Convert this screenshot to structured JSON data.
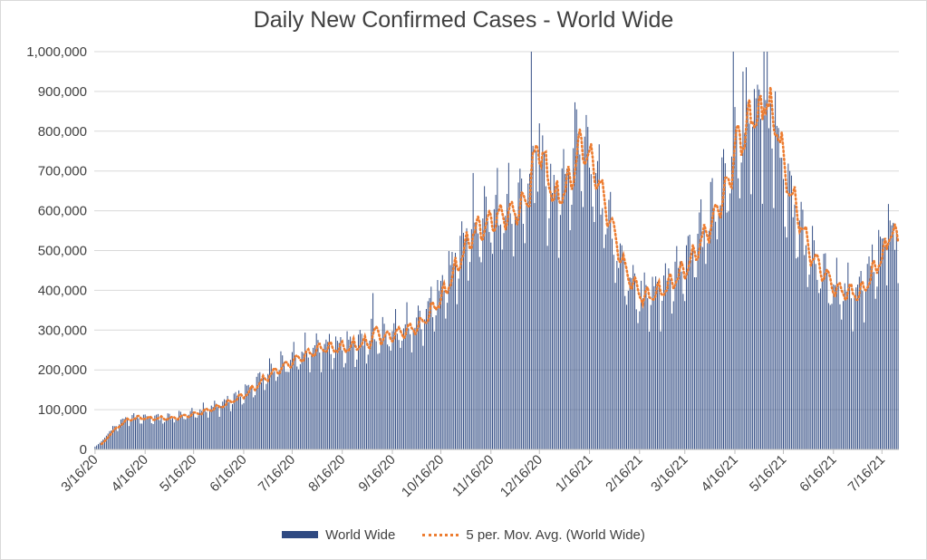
{
  "chart_data": {
    "type": "bar",
    "title": "Daily New Confirmed Cases - World Wide",
    "xlabel": "",
    "ylabel": "",
    "ylim": [
      0,
      1000000
    ],
    "yticks": [
      0,
      100000,
      200000,
      300000,
      400000,
      500000,
      600000,
      700000,
      800000,
      900000,
      1000000
    ],
    "ytick_labels": [
      "0",
      "100,000",
      "200,000",
      "300,000",
      "400,000",
      "500,000",
      "600,000",
      "700,000",
      "800,000",
      "900,000",
      "1,000,000"
    ],
    "grid": true,
    "legend_position": "bottom",
    "x_start_date": "2020-03-16",
    "x_tick_labels": [
      "3/16/20",
      "4/16/20",
      "5/16/20",
      "6/16/20",
      "7/16/20",
      "8/16/20",
      "9/16/20",
      "10/16/20",
      "11/16/20",
      "12/16/20",
      "1/16/21",
      "2/16/21",
      "3/16/21",
      "4/16/21",
      "5/16/21",
      "6/16/21",
      "7/16/21"
    ],
    "x_tick_dates": [
      "2020-03-16",
      "2020-04-16",
      "2020-05-16",
      "2020-06-16",
      "2020-07-16",
      "2020-08-16",
      "2020-09-16",
      "2020-10-16",
      "2020-11-16",
      "2020-12-16",
      "2021-01-16",
      "2021-02-16",
      "2021-03-16",
      "2021-04-16",
      "2021-05-16",
      "2021-06-16",
      "2021-07-16"
    ],
    "bar_color": "#2f4a82",
    "trend_color": "#ed7d31",
    "series": [
      {
        "name": "World Wide",
        "anchors": [
          [
            "2020-03-16",
            12000
          ],
          [
            "2020-03-24",
            40000
          ],
          [
            "2020-04-01",
            70000
          ],
          [
            "2020-04-08",
            80000
          ],
          [
            "2020-04-16",
            78000
          ],
          [
            "2020-05-01",
            78000
          ],
          [
            "2020-05-16",
            90000
          ],
          [
            "2020-06-01",
            110000
          ],
          [
            "2020-06-16",
            140000
          ],
          [
            "2020-07-01",
            190000
          ],
          [
            "2020-07-16",
            225000
          ],
          [
            "2020-08-01",
            255000
          ],
          [
            "2020-08-16",
            255000
          ],
          [
            "2020-09-01",
            270000
          ],
          [
            "2020-09-16",
            290000
          ],
          [
            "2020-10-01",
            310000
          ],
          [
            "2020-10-16",
            390000
          ],
          [
            "2020-11-01",
            530000
          ],
          [
            "2020-11-16",
            580000
          ],
          [
            "2020-12-01",
            600000
          ],
          [
            "2020-12-11",
            660000
          ],
          [
            "2020-12-16",
            730000
          ],
          [
            "2020-12-24",
            620000
          ],
          [
            "2021-01-03",
            680000
          ],
          [
            "2021-01-09",
            760000
          ],
          [
            "2021-01-16",
            720000
          ],
          [
            "2021-01-25",
            600000
          ],
          [
            "2021-02-05",
            450000
          ],
          [
            "2021-02-16",
            380000
          ],
          [
            "2021-03-01",
            400000
          ],
          [
            "2021-03-16",
            460000
          ],
          [
            "2021-04-01",
            580000
          ],
          [
            "2021-04-16",
            730000
          ],
          [
            "2021-04-26",
            850000
          ],
          [
            "2021-05-05",
            820000
          ],
          [
            "2021-05-16",
            680000
          ],
          [
            "2021-05-31",
            490000
          ],
          [
            "2021-06-16",
            400000
          ],
          [
            "2021-07-01",
            390000
          ],
          [
            "2021-07-16",
            500000
          ],
          [
            "2021-07-26",
            520000
          ]
        ],
        "spikes": [
          [
            "2020-12-11",
            1000000
          ],
          [
            "2021-01-08",
            855000
          ],
          [
            "2021-04-15",
            1000000
          ],
          [
            "2021-05-04",
            1000000
          ],
          [
            "2021-05-06",
            1000000
          ],
          [
            "2021-07-20",
            617000
          ],
          [
            "2020-10-24",
            463000
          ],
          [
            "2020-11-05",
            695000
          ],
          [
            "2020-12-14",
            750000
          ],
          [
            "2021-04-21",
            950000
          ],
          [
            "2021-05-11",
            900000
          ],
          [
            "2020-09-04",
            393000
          ]
        ]
      },
      {
        "name": "5 per. Mov. Avg. (World Wide)",
        "period": 5
      }
    ]
  },
  "legend": {
    "bar_label": "World Wide",
    "trend_label": "5 per. Mov. Avg. (World Wide)"
  }
}
